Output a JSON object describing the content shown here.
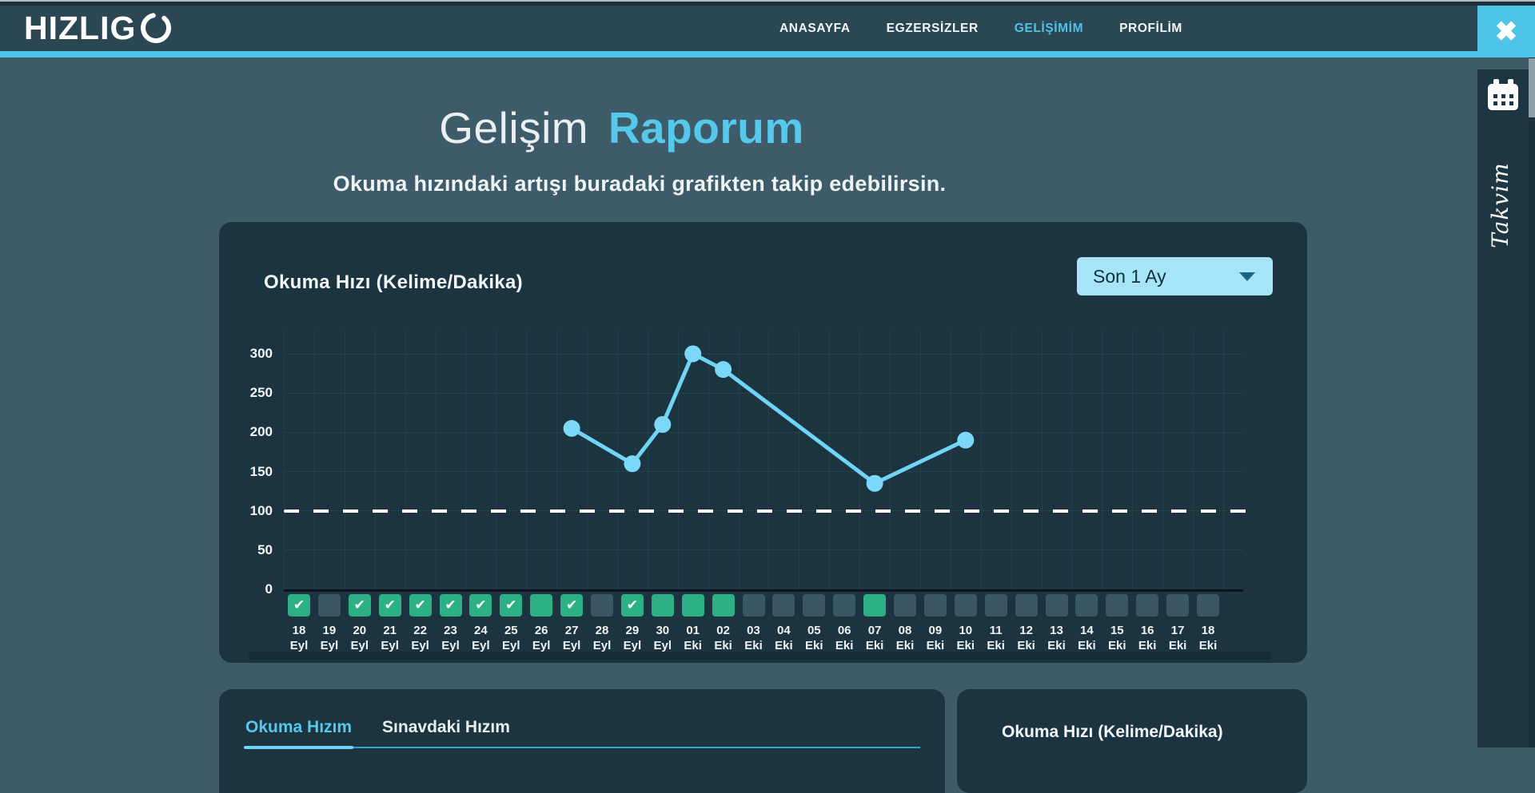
{
  "brand": {
    "logo_text": "HIZLIG",
    "logo_mark": "brush-circle-o"
  },
  "nav": {
    "items": [
      {
        "label": "ANASAYFA",
        "active": false
      },
      {
        "label": "EGZERSİZLER",
        "active": false
      },
      {
        "label": "GELİŞİMİM",
        "active": true
      },
      {
        "label": "PROFİLİM",
        "active": false
      }
    ]
  },
  "close_button": {
    "glyph": "✖"
  },
  "hero": {
    "title_light": "Gelişim",
    "title_bold": "Raporum",
    "subtitle": "Okuma hızındaki artışı buradaki grafikten takip edebilirsin."
  },
  "chart_card": {
    "title": "Okuma Hızı (Kelime/Dakika)",
    "range_select": {
      "value": "Son 1 Ay"
    }
  },
  "chart_data": {
    "type": "line",
    "title": "Okuma Hızı (Kelime/Dakika)",
    "xlabel": "",
    "ylabel": "",
    "ylim": [
      0,
      320
    ],
    "y_ticks": [
      0,
      50,
      100,
      150,
      200,
      250,
      300
    ],
    "grid": true,
    "legend": {
      "show": false
    },
    "reference_line": {
      "value": 100,
      "style": "dashed",
      "color": "#ffffff"
    },
    "x_categories": [
      {
        "day": "18",
        "month": "Eyl",
        "marker": "check"
      },
      {
        "day": "19",
        "month": "Eyl",
        "marker": "none"
      },
      {
        "day": "20",
        "month": "Eyl",
        "marker": "check"
      },
      {
        "day": "21",
        "month": "Eyl",
        "marker": "check"
      },
      {
        "day": "22",
        "month": "Eyl",
        "marker": "check"
      },
      {
        "day": "23",
        "month": "Eyl",
        "marker": "check"
      },
      {
        "day": "24",
        "month": "Eyl",
        "marker": "check"
      },
      {
        "day": "25",
        "month": "Eyl",
        "marker": "check"
      },
      {
        "day": "26",
        "month": "Eyl",
        "marker": "filled"
      },
      {
        "day": "27",
        "month": "Eyl",
        "marker": "check"
      },
      {
        "day": "28",
        "month": "Eyl",
        "marker": "none"
      },
      {
        "day": "29",
        "month": "Eyl",
        "marker": "check"
      },
      {
        "day": "30",
        "month": "Eyl",
        "marker": "filled"
      },
      {
        "day": "01",
        "month": "Eki",
        "marker": "filled"
      },
      {
        "day": "02",
        "month": "Eki",
        "marker": "filled"
      },
      {
        "day": "03",
        "month": "Eki",
        "marker": "none"
      },
      {
        "day": "04",
        "month": "Eki",
        "marker": "none"
      },
      {
        "day": "05",
        "month": "Eki",
        "marker": "none"
      },
      {
        "day": "06",
        "month": "Eki",
        "marker": "none"
      },
      {
        "day": "07",
        "month": "Eki",
        "marker": "filled"
      },
      {
        "day": "08",
        "month": "Eki",
        "marker": "none"
      },
      {
        "day": "09",
        "month": "Eki",
        "marker": "none"
      },
      {
        "day": "10",
        "month": "Eki",
        "marker": "none"
      },
      {
        "day": "11",
        "month": "Eki",
        "marker": "none"
      },
      {
        "day": "12",
        "month": "Eki",
        "marker": "none"
      },
      {
        "day": "13",
        "month": "Eki",
        "marker": "none"
      },
      {
        "day": "14",
        "month": "Eki",
        "marker": "none"
      },
      {
        "day": "15",
        "month": "Eki",
        "marker": "none"
      },
      {
        "day": "16",
        "month": "Eki",
        "marker": "none"
      },
      {
        "day": "17",
        "month": "Eki",
        "marker": "none"
      },
      {
        "day": "18",
        "month": "Eki",
        "marker": "none"
      }
    ],
    "series": [
      {
        "name": "Okuma Hızı",
        "color": "#70d4f4",
        "point_color": "#7bd8f6",
        "points": [
          {
            "date": "27 Eyl",
            "value": 205
          },
          {
            "date": "29 Eyl",
            "value": 160
          },
          {
            "date": "30 Eyl",
            "value": 210
          },
          {
            "date": "01 Eki",
            "value": 300
          },
          {
            "date": "02 Eki",
            "value": 280
          },
          {
            "date": "07 Eki",
            "value": 135
          },
          {
            "date": "10 Eki",
            "value": 190
          }
        ]
      }
    ],
    "marker_colors": {
      "check": "#2eb086",
      "filled": "#2eb086",
      "none": "#3a5763"
    }
  },
  "bottom_left_card": {
    "tabs": [
      {
        "label": "Okuma Hızım",
        "active": true
      },
      {
        "label": "Sınavdaki Hızım",
        "active": false
      }
    ]
  },
  "bottom_right_card": {
    "title": "Okuma Hızı (Kelime/Dakika)"
  },
  "sidebar": {
    "label": "Takvim",
    "icon": "calendar-icon"
  },
  "colors": {
    "accent": "#4fc4e9",
    "line": "#70d4f4",
    "green": "#2eb086",
    "slate_square": "#3a5763",
    "select_bg": "#a6e4f7"
  }
}
